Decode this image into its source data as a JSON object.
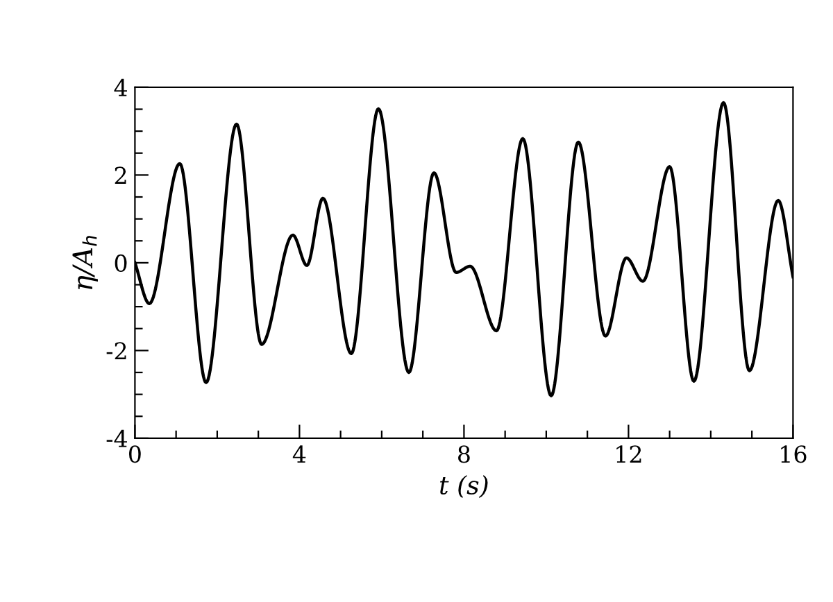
{
  "chart_data": {
    "type": "line",
    "xlabel": "t (s)",
    "ylabel": "η/A$_{h}$",
    "series": [
      {
        "color": "#000000",
        "x": [
          0,
          0.35,
          1.09,
          1.73,
          2.47,
          3.08,
          3.84,
          4.18,
          4.57,
          5.26,
          5.92,
          6.66,
          7.27,
          7.81,
          8.15,
          8.79,
          9.43,
          10.12,
          10.78,
          11.44,
          11.95,
          12.35,
          13.0,
          13.59,
          14.31,
          14.94,
          15.64,
          16.0
        ],
        "values": [
          0,
          -0.93,
          2.26,
          -2.73,
          3.16,
          -1.86,
          0.63,
          -0.06,
          1.47,
          -2.07,
          3.51,
          -2.5,
          2.05,
          -0.22,
          -0.08,
          -1.55,
          2.83,
          -3.03,
          2.75,
          -1.67,
          0.11,
          -0.42,
          2.19,
          -2.7,
          3.65,
          -2.46,
          1.42,
          -0.32
        ]
      }
    ],
    "xlim": [
      0,
      16
    ],
    "ylim": [
      -4,
      4
    ],
    "xticks": [
      0,
      {
        "value": 1,
        "label": null
      },
      {
        "value": 2,
        "label": null
      },
      {
        "value": 3,
        "label": null
      },
      4,
      {
        "value": 5,
        "label": null
      },
      {
        "value": 6,
        "label": null
      },
      {
        "value": 7,
        "label": null
      },
      8,
      {
        "value": 9,
        "label": null
      },
      {
        "value": 10,
        "label": null
      },
      {
        "value": 11,
        "label": null
      },
      12,
      {
        "value": 13,
        "label": null
      },
      {
        "value": 14,
        "label": null
      },
      {
        "value": 15,
        "label": null
      },
      16
    ],
    "yticks": [
      -4,
      {
        "value": -3.5,
        "label": null
      },
      {
        "value": -3,
        "label": null
      },
      {
        "value": -2.5,
        "label": null
      },
      -2,
      {
        "value": -1.5,
        "label": null
      },
      {
        "value": -1,
        "label": null
      },
      {
        "value": -0.5,
        "label": null
      },
      0,
      {
        "value": 0.5,
        "label": null
      },
      {
        "value": 1,
        "label": null
      },
      {
        "value": 1.5,
        "label": null
      },
      2,
      {
        "value": 2.5,
        "label": null
      },
      {
        "value": 3,
        "label": null
      },
      {
        "value": 3.5,
        "label": null
      },
      4
    ],
    "grid": false,
    "legend": false,
    "marker": "none",
    "line_style": "solid"
  }
}
